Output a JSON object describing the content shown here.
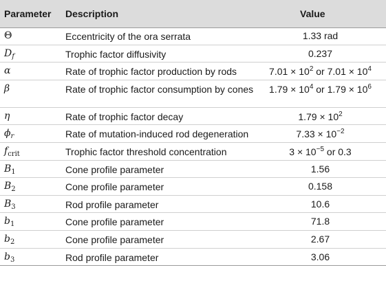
{
  "headers": {
    "parameter": "Parameter",
    "description": "Description",
    "value": "Value"
  },
  "rows": [
    {
      "symbol": "Θ",
      "sub": "",
      "description": "Eccentricity of the ora serrata",
      "value": "1.33 rad"
    },
    {
      "symbol": "D",
      "sub": "f",
      "description": "Trophic factor diffusivity",
      "value": "0.237"
    },
    {
      "symbol": "α",
      "sub": "",
      "description": "Rate of trophic factor production by rods",
      "value_a": "7.01 × 10",
      "exp_a": "2",
      "value_mid": " or 7.01 × 10",
      "exp_b": "4"
    },
    {
      "symbol": "β",
      "sub": "",
      "description": "Rate of trophic factor consumption by cones",
      "value_a": "1.79 × 10",
      "exp_a": "4",
      "value_mid": " or 1.79 × 10",
      "exp_b": "6"
    },
    {
      "symbol": "η",
      "sub": "",
      "description": "Rate of trophic factor decay",
      "value_a": "1.79 × 10",
      "exp_a": "2"
    },
    {
      "symbol": "ϕ",
      "sub": "r",
      "description": "Rate of mutation-induced rod degeneration",
      "value_a": "7.33 × 10",
      "exp_a": "−2"
    },
    {
      "symbol": "f",
      "sub": "crit",
      "description": "Trophic factor threshold concentration",
      "value_a": "3 × 10",
      "exp_a": "−5",
      "value_mid": " or 0.3"
    },
    {
      "symbol": "B",
      "sub": "1",
      "description": "Cone profile parameter",
      "value": "1.56"
    },
    {
      "symbol": "B",
      "sub": "2",
      "description": "Cone profile parameter",
      "value": "0.158"
    },
    {
      "symbol": "B",
      "sub": "3",
      "description": "Rod profile parameter",
      "value": "10.6"
    },
    {
      "symbol": "b",
      "sub": "1",
      "description": "Cone profile parameter",
      "value": "71.8"
    },
    {
      "symbol": "b",
      "sub": "2",
      "description": "Cone profile parameter",
      "value": "2.67"
    },
    {
      "symbol": "b",
      "sub": "3",
      "description": "Rod profile parameter",
      "value": "3.06"
    }
  ]
}
